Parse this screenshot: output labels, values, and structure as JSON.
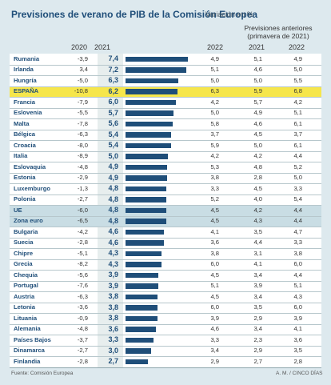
{
  "chart_data": {
    "type": "table",
    "title": "Previsiones de verano de PIB de la Comisión Europea",
    "subtitle": "Variación en %",
    "columns": [
      "2020",
      "2021",
      "2022",
      "2021",
      "2022"
    ],
    "previous_header": "Previsiones anteriores (primavera de 2021)",
    "previous_header_line1": "Previsiones anteriores",
    "previous_header_line2": "(primavera de 2021)",
    "bar_series": "2021",
    "xlim": [
      0,
      7.4
    ],
    "highlight": {
      "ESPAÑA": "#f6e64b",
      "UE": "#c9dde4",
      "Zona euro": "#c9dde4"
    },
    "rows": [
      {
        "country": "Rumania",
        "y2020": "-3,9",
        "y2021": "7,4",
        "value": 7.4,
        "y2022": "4,9",
        "p2021": "5,1",
        "p2022": "4,9"
      },
      {
        "country": "Irlanda",
        "y2020": "3,4",
        "y2021": "7,2",
        "value": 7.2,
        "y2022": "5,1",
        "p2021": "4,6",
        "p2022": "5,0"
      },
      {
        "country": "Hungría",
        "y2020": "-5,0",
        "y2021": "6,3",
        "value": 6.3,
        "y2022": "5,0",
        "p2021": "5,0",
        "p2022": "5,5"
      },
      {
        "country": "ESPAÑA",
        "y2020": "-10,8",
        "y2021": "6,2",
        "value": 6.2,
        "y2022": "6,3",
        "p2021": "5,9",
        "p2022": "6,8"
      },
      {
        "country": "Francia",
        "y2020": "-7,9",
        "y2021": "6,0",
        "value": 6.0,
        "y2022": "4,2",
        "p2021": "5,7",
        "p2022": "4,2"
      },
      {
        "country": "Eslovenia",
        "y2020": "-5,5",
        "y2021": "5,7",
        "value": 5.7,
        "y2022": "5,0",
        "p2021": "4,9",
        "p2022": "5,1"
      },
      {
        "country": "Malta",
        "y2020": "-7,8",
        "y2021": "5,6",
        "value": 5.6,
        "y2022": "5,8",
        "p2021": "4,6",
        "p2022": "6,1"
      },
      {
        "country": "Bélgica",
        "y2020": "-6,3",
        "y2021": "5,4",
        "value": 5.4,
        "y2022": "3,7",
        "p2021": "4,5",
        "p2022": "3,7"
      },
      {
        "country": "Croacia",
        "y2020": "-8,0",
        "y2021": "5,4",
        "value": 5.4,
        "y2022": "5,9",
        "p2021": "5,0",
        "p2022": "6,1"
      },
      {
        "country": "Italia",
        "y2020": "-8,9",
        "y2021": "5,0",
        "value": 5.0,
        "y2022": "4,2",
        "p2021": "4,2",
        "p2022": "4,4"
      },
      {
        "country": "Eslovaquia",
        "y2020": "-4,8",
        "y2021": "4,9",
        "value": 4.9,
        "y2022": "5,3",
        "p2021": "4,8",
        "p2022": "5,2"
      },
      {
        "country": "Estonia",
        "y2020": "-2,9",
        "y2021": "4,9",
        "value": 4.9,
        "y2022": "3,8",
        "p2021": "2,8",
        "p2022": "5,0"
      },
      {
        "country": "Luxemburgo",
        "y2020": "-1,3",
        "y2021": "4,8",
        "value": 4.8,
        "y2022": "3,3",
        "p2021": "4,5",
        "p2022": "3,3"
      },
      {
        "country": "Polonia",
        "y2020": "-2,7",
        "y2021": "4,8",
        "value": 4.8,
        "y2022": "5,2",
        "p2021": "4,0",
        "p2022": "5,4"
      },
      {
        "country": "UE",
        "y2020": "-6,0",
        "y2021": "4,8",
        "value": 4.8,
        "y2022": "4,5",
        "p2021": "4,2",
        "p2022": "4,4"
      },
      {
        "country": "Zona euro",
        "y2020": "-6,5",
        "y2021": "4,8",
        "value": 4.8,
        "y2022": "4,5",
        "p2021": "4,3",
        "p2022": "4,4"
      },
      {
        "country": "Bulgaria",
        "y2020": "-4,2",
        "y2021": "4,6",
        "value": 4.6,
        "y2022": "4,1",
        "p2021": "3,5",
        "p2022": "4,7"
      },
      {
        "country": "Suecia",
        "y2020": "-2,8",
        "y2021": "4,6",
        "value": 4.6,
        "y2022": "3,6",
        "p2021": "4,4",
        "p2022": "3,3"
      },
      {
        "country": "Chipre",
        "y2020": "-5,1",
        "y2021": "4,3",
        "value": 4.3,
        "y2022": "3,8",
        "p2021": "3,1",
        "p2022": "3,8"
      },
      {
        "country": "Grecia",
        "y2020": "-8,2",
        "y2021": "4,3",
        "value": 4.3,
        "y2022": "6,0",
        "p2021": "4,1",
        "p2022": "6,0"
      },
      {
        "country": "Chequia",
        "y2020": "-5,6",
        "y2021": "3,9",
        "value": 3.9,
        "y2022": "4,5",
        "p2021": "3,4",
        "p2022": "4,4"
      },
      {
        "country": "Portugal",
        "y2020": "-7,6",
        "y2021": "3,9",
        "value": 3.9,
        "y2022": "5,1",
        "p2021": "3,9",
        "p2022": "5,1"
      },
      {
        "country": "Austria",
        "y2020": "-6,3",
        "y2021": "3,8",
        "value": 3.8,
        "y2022": "4,5",
        "p2021": "3,4",
        "p2022": "4,3"
      },
      {
        "country": "Letonia",
        "y2020": "-3,6",
        "y2021": "3,8",
        "value": 3.8,
        "y2022": "6,0",
        "p2021": "3,5",
        "p2022": "6,0"
      },
      {
        "country": "Lituania",
        "y2020": "-0,9",
        "y2021": "3,8",
        "value": 3.8,
        "y2022": "3,9",
        "p2021": "2,9",
        "p2022": "3,9"
      },
      {
        "country": "Alemania",
        "y2020": "-4,8",
        "y2021": "3,6",
        "value": 3.6,
        "y2022": "4,6",
        "p2021": "3,4",
        "p2022": "4,1"
      },
      {
        "country": "Países Bajos",
        "y2020": "-3,7",
        "y2021": "3,3",
        "value": 3.3,
        "y2022": "3,3",
        "p2021": "2,3",
        "p2022": "3,6"
      },
      {
        "country": "Dinamarca",
        "y2020": "-2,7",
        "y2021": "3,0",
        "value": 3.0,
        "y2022": "3,4",
        "p2021": "2,9",
        "p2022": "3,5"
      },
      {
        "country": "Finlandia",
        "y2020": "-2,8",
        "y2021": "2,7",
        "value": 2.7,
        "y2022": "2,9",
        "p2021": "2,7",
        "p2022": "2,8"
      }
    ],
    "source": "Fuente: Comisión Europea",
    "credit": "A. M. / CINCO DÍAS",
    "colors": {
      "bar": "#1f4e79",
      "text": "#1f4e79",
      "background": "#dde9ee",
      "table": "#ffffff",
      "col2021": "#e7eeee"
    }
  }
}
